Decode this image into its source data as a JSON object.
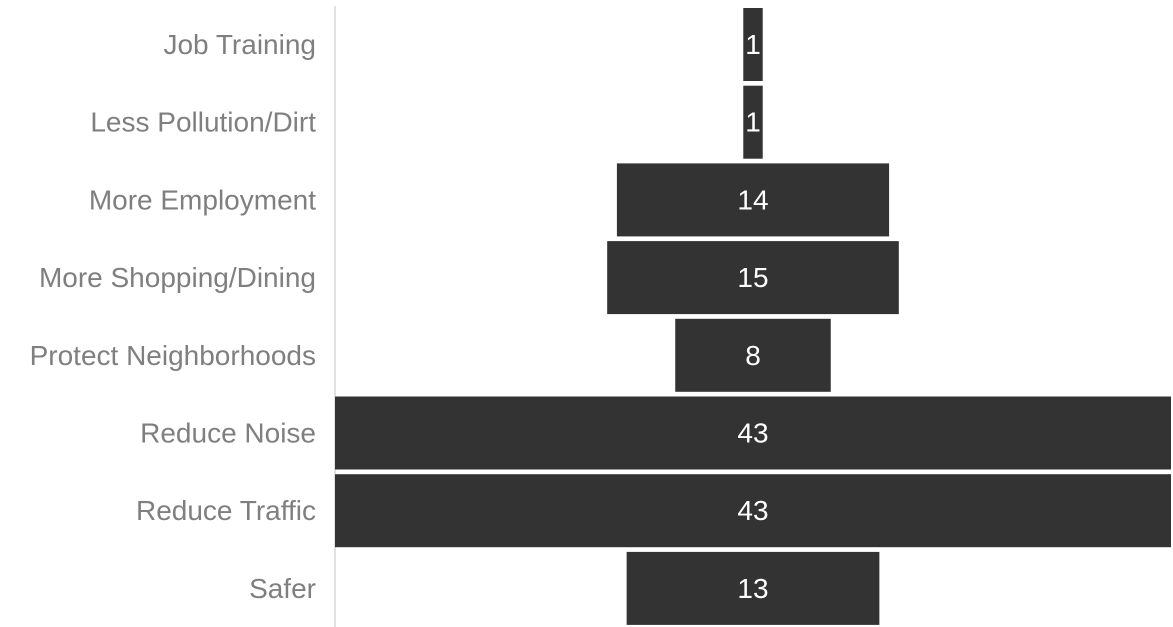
{
  "chart_data": {
    "type": "bar",
    "orientation": "horizontal",
    "style": "funnel",
    "categories": [
      "Job Training",
      "Less Pollution/Dirt",
      "More Employment",
      "More Shopping/Dining",
      "Protect Neighborhoods",
      "Reduce Noise",
      "Reduce Traffic",
      "Safer"
    ],
    "values": [
      1,
      1,
      14,
      15,
      8,
      43,
      43,
      13
    ],
    "xlim": [
      0,
      43
    ],
    "data_labels": true,
    "grid": false,
    "legend": "none",
    "bar_color": "#333333",
    "label_color": "#7f7f7f",
    "value_label_color": "#ffffff",
    "axis_color": "#d9d9d9"
  }
}
